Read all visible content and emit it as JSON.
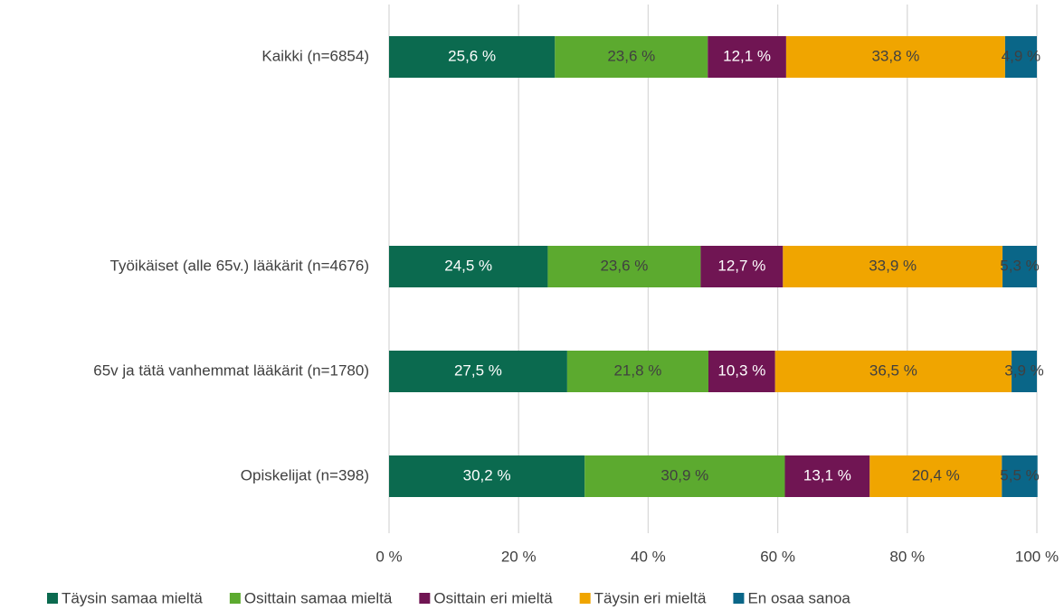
{
  "chart_data": {
    "type": "stacked-barh",
    "categories": [
      "Kaikki (n=6854)",
      null,
      "Työikäiset (alle 65v.) lääkärit (n=4676)",
      "65v ja tätä vanhemmat lääkärit (n=1780)",
      "Opiskelijat (n=398)"
    ],
    "series": [
      {
        "name": "Täysin samaa mieltä",
        "color": "#0b6a4f",
        "label_color": "#ffffff",
        "values": [
          25.6,
          null,
          24.5,
          27.5,
          30.2
        ],
        "value_labels": [
          "25,6 %",
          null,
          "24,5 %",
          "27,5 %",
          "30,2 %"
        ]
      },
      {
        "name": "Osittain samaa mieltä",
        "color": "#5caa2f",
        "label_color": "#404040",
        "values": [
          23.6,
          null,
          23.6,
          21.8,
          30.9
        ],
        "value_labels": [
          "23,6 %",
          null,
          "23,6 %",
          "21,8 %",
          "30,9 %"
        ]
      },
      {
        "name": "Osittain eri mieltä",
        "color": "#701553",
        "label_color": "#ffffff",
        "values": [
          12.1,
          null,
          12.7,
          10.3,
          13.1
        ],
        "value_labels": [
          "12,1 %",
          null,
          "12,7 %",
          "10,3 %",
          "13,1 %"
        ]
      },
      {
        "name": "Täysin eri mieltä",
        "color": "#f0a500",
        "label_color": "#404040",
        "values": [
          33.8,
          null,
          33.9,
          36.5,
          20.4
        ],
        "value_labels": [
          "33,8 %",
          null,
          "33,9 %",
          "36,5 %",
          "20,4 %"
        ]
      },
      {
        "name": "En osaa sanoa",
        "color": "#0a6688",
        "label_color": "#404040",
        "values": [
          4.9,
          null,
          5.3,
          3.9,
          5.5
        ],
        "value_labels": [
          "4,9 %",
          null,
          "5,3 %",
          "3,9 %",
          "5,5 %"
        ]
      }
    ],
    "xlim": [
      0,
      100
    ],
    "xticks": [
      {
        "value": 0,
        "label": "0 %"
      },
      {
        "value": 20,
        "label": "20 %"
      },
      {
        "value": 40,
        "label": "40 %"
      },
      {
        "value": 60,
        "label": "60 %"
      },
      {
        "value": 80,
        "label": "80 %"
      },
      {
        "value": 100,
        "label": "100 %"
      }
    ],
    "grid": true,
    "legend": "bottom"
  }
}
